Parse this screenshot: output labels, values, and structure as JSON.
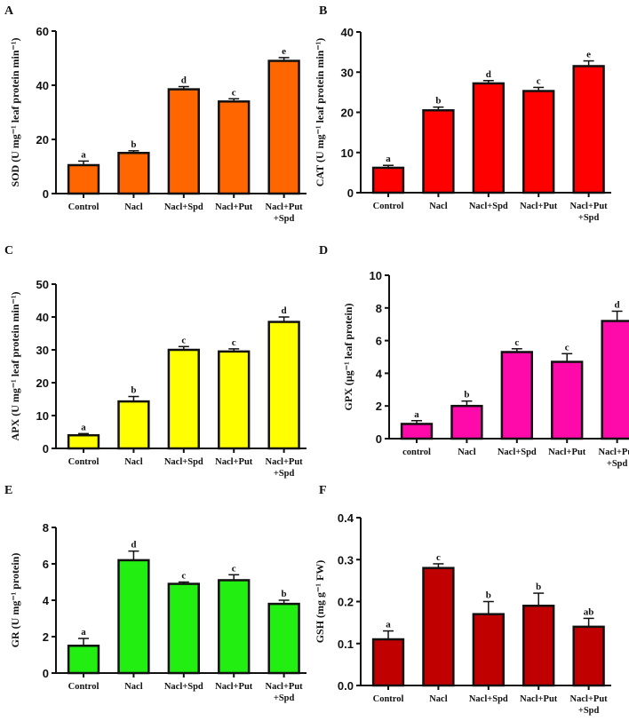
{
  "chart_data": [
    {
      "panel": "A",
      "type": "bar",
      "ylabel": "SOD (U mg⁻¹ leaf protein min⁻¹)",
      "categories": [
        "Control",
        "Nacl",
        "Nacl+Spd",
        "Nacl+Put",
        "Nacl+Put +Spd"
      ],
      "values": [
        10.5,
        15,
        38.5,
        34,
        49
      ],
      "errors": [
        1.5,
        0.8,
        1,
        1,
        1.2
      ],
      "letters": [
        "a",
        "b",
        "d",
        "c",
        "e"
      ],
      "ylim": [
        0,
        60
      ],
      "yticks": [
        "0",
        "20",
        "40",
        "60"
      ],
      "color": "#FF6600"
    },
    {
      "panel": "B",
      "type": "bar",
      "ylabel": "CAT (U mg⁻¹ leaf protein min⁻¹)",
      "categories": [
        "Control",
        "Nacl",
        "Nacl+Spd",
        "Nacl+Put",
        "Nacl+Put +Spd"
      ],
      "values": [
        6.2,
        20.5,
        27.2,
        25.3,
        31.5
      ],
      "errors": [
        0.6,
        0.8,
        0.7,
        0.9,
        1.3
      ],
      "letters": [
        "a",
        "b",
        "d",
        "c",
        "e"
      ],
      "ylim": [
        0,
        40
      ],
      "yticks": [
        "0",
        "10",
        "20",
        "30",
        "40"
      ],
      "color": "#FF0000"
    },
    {
      "panel": "C",
      "type": "bar",
      "ylabel": "APX (U mg⁻¹ leaf protein min⁻¹)",
      "categories": [
        "Control",
        "Nacl",
        "Nacl+Spd",
        "Nacl+Put",
        "Nacl+Put +Spd"
      ],
      "values": [
        4,
        14.3,
        30,
        29.5,
        38.5
      ],
      "errors": [
        0.5,
        1.5,
        1,
        0.8,
        1.5
      ],
      "letters": [
        "a",
        "b",
        "c",
        "c",
        "d"
      ],
      "ylim": [
        0,
        50
      ],
      "yticks": [
        "0",
        "10",
        "20",
        "30",
        "40",
        "50"
      ],
      "color": "#FFFF00"
    },
    {
      "panel": "D",
      "type": "bar",
      "ylabel": "GPX (µg⁻¹ leaf protein)",
      "categories": [
        "control",
        "Nacl",
        "Nacl+Spd",
        "Nacl+Put",
        "Nacl+Put +Spd"
      ],
      "values": [
        0.9,
        2.0,
        5.3,
        4.7,
        7.2
      ],
      "errors": [
        0.2,
        0.3,
        0.2,
        0.5,
        0.6
      ],
      "letters": [
        "a",
        "b",
        "c",
        "c",
        "d"
      ],
      "ylim": [
        0,
        10
      ],
      "yticks": [
        "0",
        "2",
        "4",
        "6",
        "8",
        "10"
      ],
      "color": "#FF0AAA"
    },
    {
      "panel": "E",
      "type": "bar",
      "ylabel": "GR (U mg⁻¹ protein)",
      "categories": [
        "Control",
        "Nacl",
        "Nacl+Spd",
        "Nacl+Put",
        "Nacl+Put +Spd"
      ],
      "values": [
        1.5,
        6.2,
        4.9,
        5.1,
        3.8
      ],
      "errors": [
        0.4,
        0.5,
        0.1,
        0.3,
        0.2
      ],
      "letters": [
        "a",
        "d",
        "c",
        "c",
        "b"
      ],
      "ylim": [
        0,
        8
      ],
      "yticks": [
        "0",
        "2",
        "4",
        "6",
        "8"
      ],
      "color": "#22EE11"
    },
    {
      "panel": "F",
      "type": "bar",
      "ylabel": "GSH (mg g⁻¹ FW)",
      "categories": [
        "Control",
        "Nacl",
        "Nacl+Spd",
        "Nacl+Put",
        "Nacl+Put +Spd"
      ],
      "values": [
        0.11,
        0.28,
        0.17,
        0.19,
        0.14
      ],
      "errors": [
        0.02,
        0.01,
        0.03,
        0.03,
        0.02
      ],
      "letters": [
        "a",
        "c",
        "b",
        "b",
        "ab"
      ],
      "ylim": [
        0,
        0.4
      ],
      "yticks": [
        "0.0",
        "0.1",
        "0.2",
        "0.3",
        "0.4"
      ],
      "color": "#C00000"
    }
  ]
}
